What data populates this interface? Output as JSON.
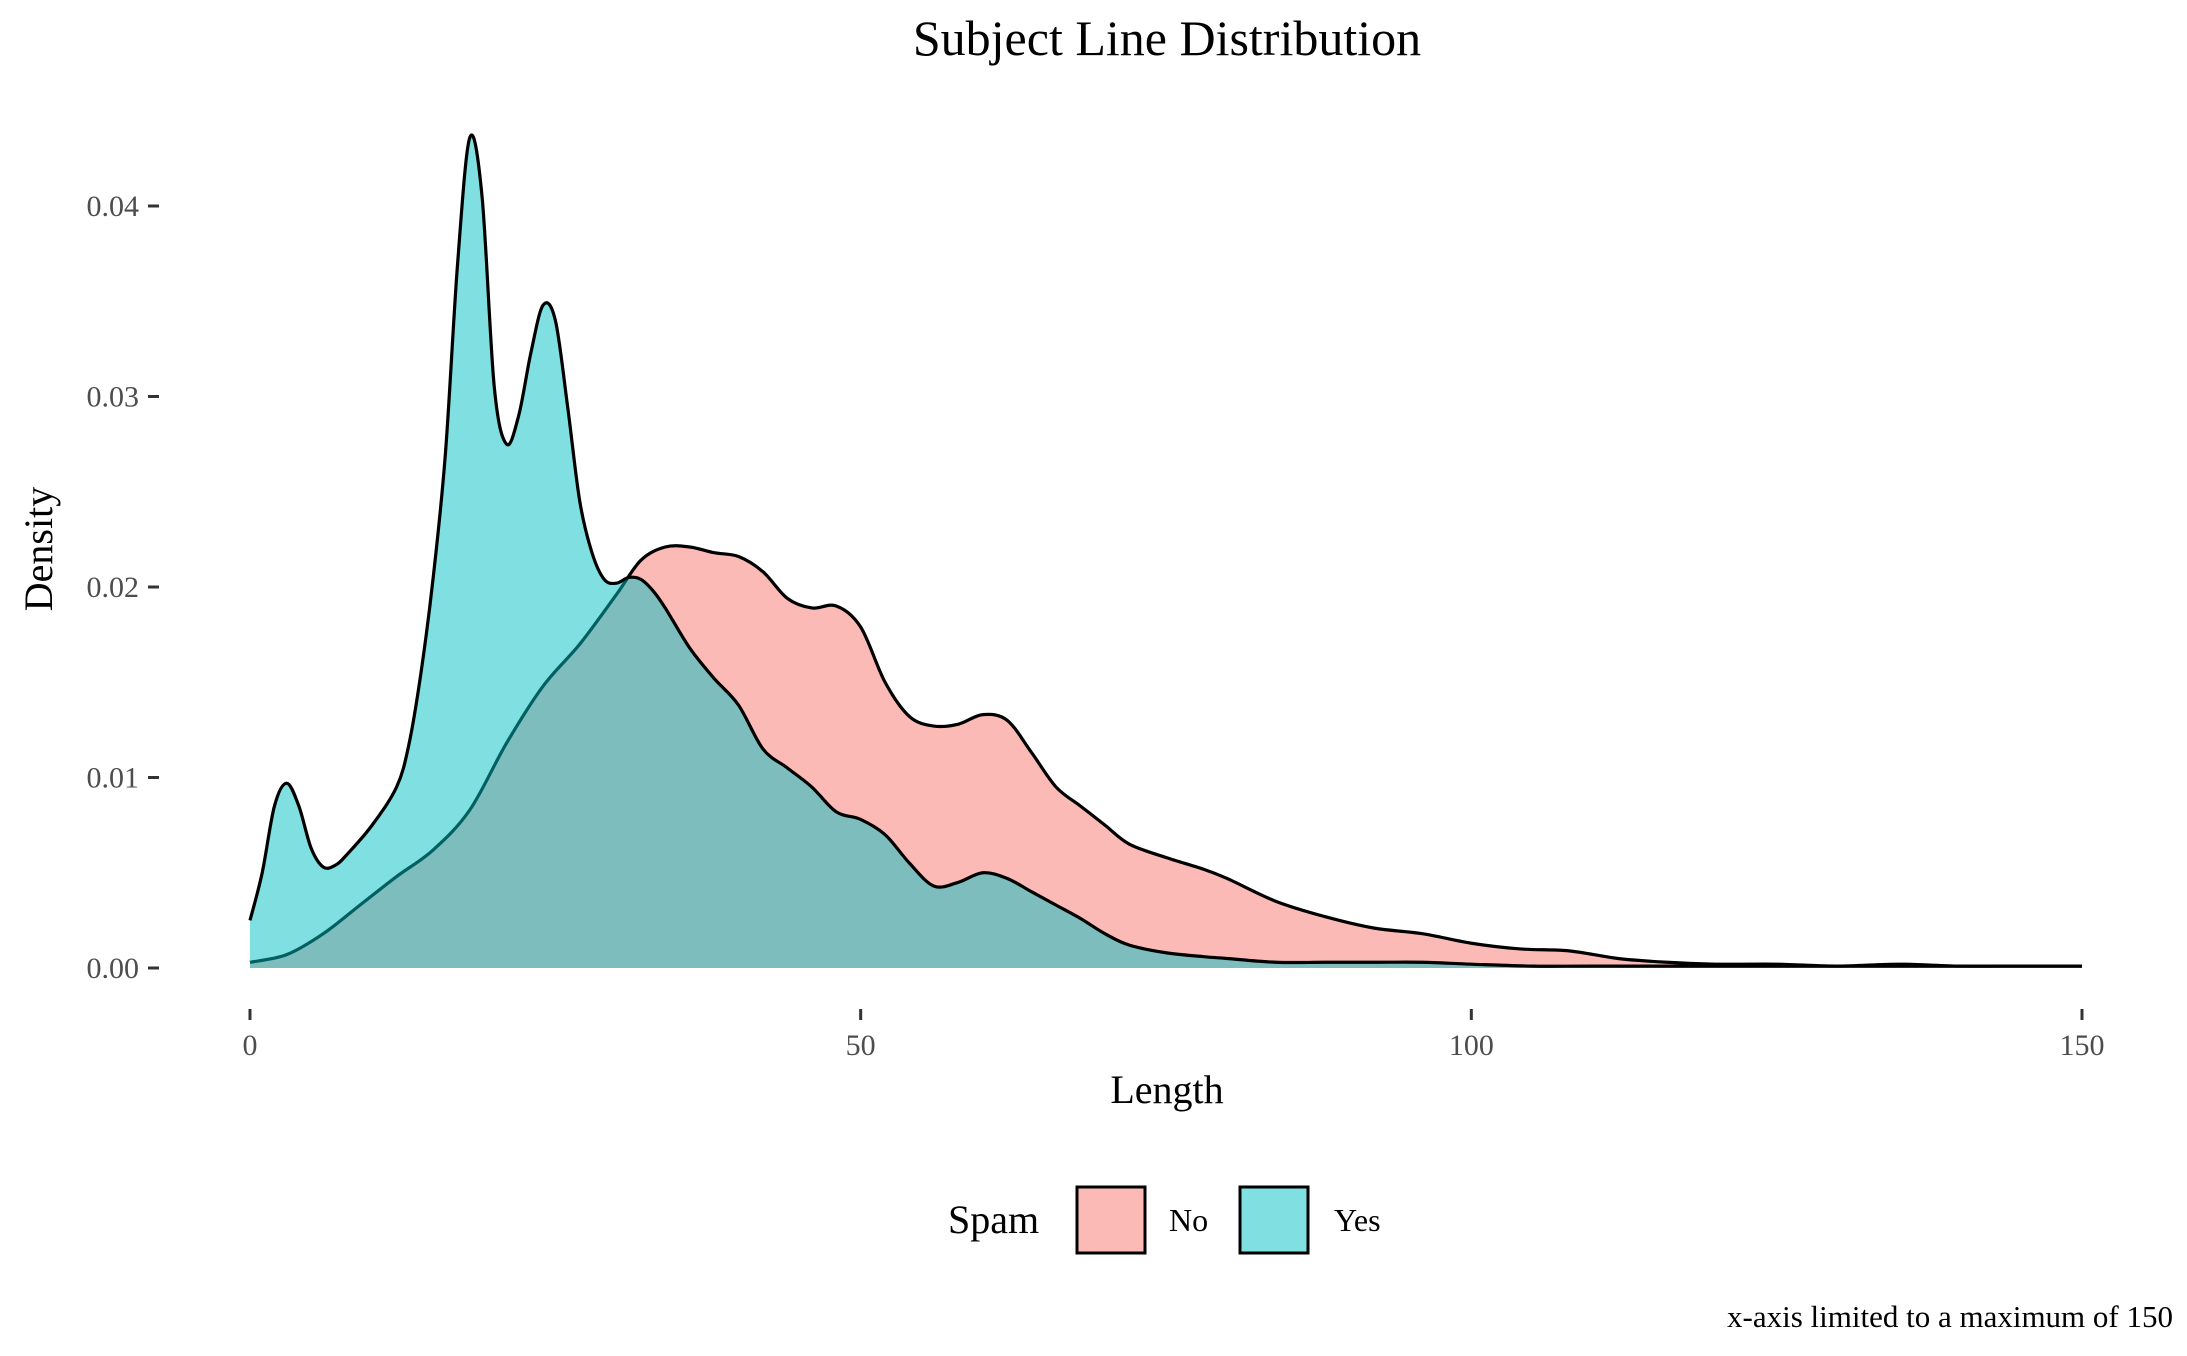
{
  "colors": {
    "no_fill": "#F8766D",
    "yes_fill": "#00BFC4",
    "outline": "#000000",
    "tick_text": "#4d4d4d"
  },
  "chart_data": {
    "type": "area",
    "subtype": "density",
    "title": "Subject Line Distribution",
    "xlabel": "Length",
    "ylabel": "Density",
    "xlim": [
      0,
      150
    ],
    "ylim": [
      0,
      0.044
    ],
    "x_ticks": [
      0,
      50,
      100,
      150
    ],
    "x_tick_labels": [
      "0",
      "50",
      "100",
      "150"
    ],
    "y_ticks": [
      0,
      0.01,
      0.02,
      0.03,
      0.04
    ],
    "y_tick_labels": [
      "0.00",
      "0.01",
      "0.02",
      "0.03",
      "0.04"
    ],
    "grid": false,
    "fill_opacity": 0.5,
    "legend": {
      "title": "Spam",
      "position": "bottom",
      "entries": [
        "No",
        "Yes"
      ]
    },
    "caption": "x-axis limited to a maximum of 150",
    "series": [
      {
        "name": "No",
        "color": "#F8766D",
        "x": [
          0,
          3,
          6,
          9,
          12,
          15,
          18,
          21,
          24,
          27,
          30,
          32,
          34,
          36,
          38,
          40,
          42,
          44,
          46,
          48,
          50,
          52,
          54,
          56,
          58,
          60,
          62,
          64,
          66,
          68,
          70,
          72,
          75,
          78,
          80,
          84,
          88,
          92,
          96,
          100,
          104,
          108,
          112,
          116,
          120,
          125,
          130,
          135,
          140,
          145,
          150
        ],
        "y": [
          0.0003,
          0.0007,
          0.0018,
          0.0033,
          0.0048,
          0.0062,
          0.0083,
          0.0118,
          0.0148,
          0.017,
          0.0196,
          0.0214,
          0.0221,
          0.0221,
          0.0218,
          0.0216,
          0.0208,
          0.0194,
          0.0189,
          0.019,
          0.0179,
          0.015,
          0.0132,
          0.0127,
          0.0128,
          0.0133,
          0.013,
          0.0113,
          0.0095,
          0.0085,
          0.0075,
          0.0065,
          0.0058,
          0.0052,
          0.0047,
          0.0035,
          0.0027,
          0.0021,
          0.0018,
          0.0013,
          0.001,
          0.0009,
          0.0005,
          0.0003,
          0.0002,
          0.0002,
          0.0001,
          0.0002,
          0.0001,
          0.0001,
          0.0001
        ]
      },
      {
        "name": "Yes",
        "color": "#00BFC4",
        "x": [
          0,
          1,
          2,
          3,
          4,
          5,
          6,
          7,
          8,
          10,
          12,
          13,
          14,
          15,
          16,
          17,
          18,
          19,
          20,
          21,
          22,
          23,
          24,
          25,
          26,
          27,
          28,
          29,
          30,
          31,
          32,
          33,
          34,
          36,
          38,
          40,
          42,
          44,
          46,
          48,
          50,
          52,
          54,
          56,
          58,
          60,
          62,
          64,
          66,
          68,
          70,
          72,
          75,
          78,
          80,
          84,
          88,
          92,
          96,
          100,
          105,
          110,
          120,
          130,
          140,
          150
        ],
        "y": [
          0.0025,
          0.005,
          0.0085,
          0.0097,
          0.0085,
          0.0063,
          0.0053,
          0.0054,
          0.006,
          0.0075,
          0.0095,
          0.0117,
          0.0155,
          0.0205,
          0.027,
          0.037,
          0.0436,
          0.0405,
          0.0305,
          0.0275,
          0.029,
          0.0323,
          0.0348,
          0.034,
          0.0295,
          0.0245,
          0.0218,
          0.0204,
          0.0202,
          0.0205,
          0.0204,
          0.0198,
          0.0189,
          0.0168,
          0.0152,
          0.0138,
          0.0115,
          0.0105,
          0.0095,
          0.0082,
          0.0078,
          0.007,
          0.0055,
          0.0043,
          0.0045,
          0.005,
          0.0047,
          0.004,
          0.0033,
          0.0026,
          0.0018,
          0.0012,
          0.0008,
          0.0006,
          0.0005,
          0.0003,
          0.0003,
          0.0003,
          0.0003,
          0.0002,
          0.0001,
          0.0001,
          0.0001,
          0.0001,
          0.0001,
          0.0001
        ]
      }
    ]
  }
}
